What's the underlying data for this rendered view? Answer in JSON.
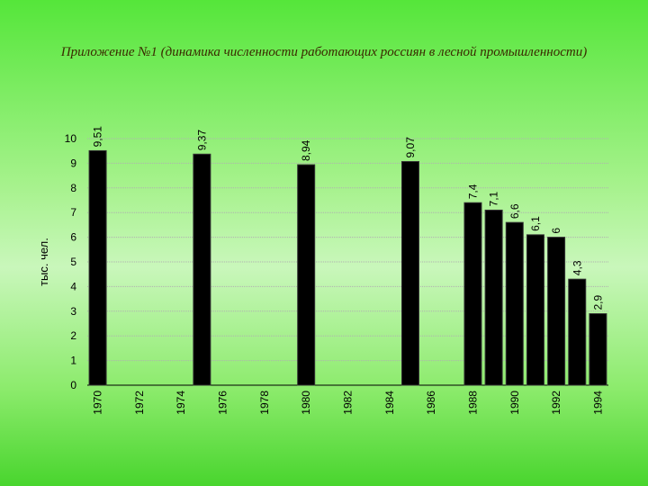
{
  "slide": {
    "title": "Приложение №1 (динамика численности работающих россиян в лесной промышленности)"
  },
  "chart_data": {
    "type": "bar",
    "ylabel": "тыс. чел.",
    "ylim": [
      0,
      10
    ],
    "yticks": [
      0,
      1,
      2,
      3,
      4,
      5,
      6,
      7,
      8,
      9,
      10
    ],
    "categories": [
      "1970",
      "1972",
      "1974",
      "1976",
      "1978",
      "1980",
      "1982",
      "1984",
      "1986",
      "1988",
      "1990",
      "1992",
      "1994"
    ],
    "series": [
      {
        "x": [
          "1970",
          "1975",
          "1980",
          "1985",
          "1988",
          "1989",
          "1990",
          "1991",
          "1992",
          "1993",
          "1994"
        ],
        "values": [
          9.51,
          9.37,
          8.94,
          9.07,
          7.4,
          7.1,
          6.6,
          6.1,
          6,
          4.3,
          2.9
        ],
        "labels": [
          "9,51",
          "9,37",
          "8,94",
          "9,07",
          "7,4",
          "7,1",
          "6,6",
          "6,1",
          "6",
          "4,3",
          "2,9"
        ]
      }
    ],
    "grid": true,
    "bar_color": "#000000",
    "gridline_color": "#b0b0b0"
  }
}
